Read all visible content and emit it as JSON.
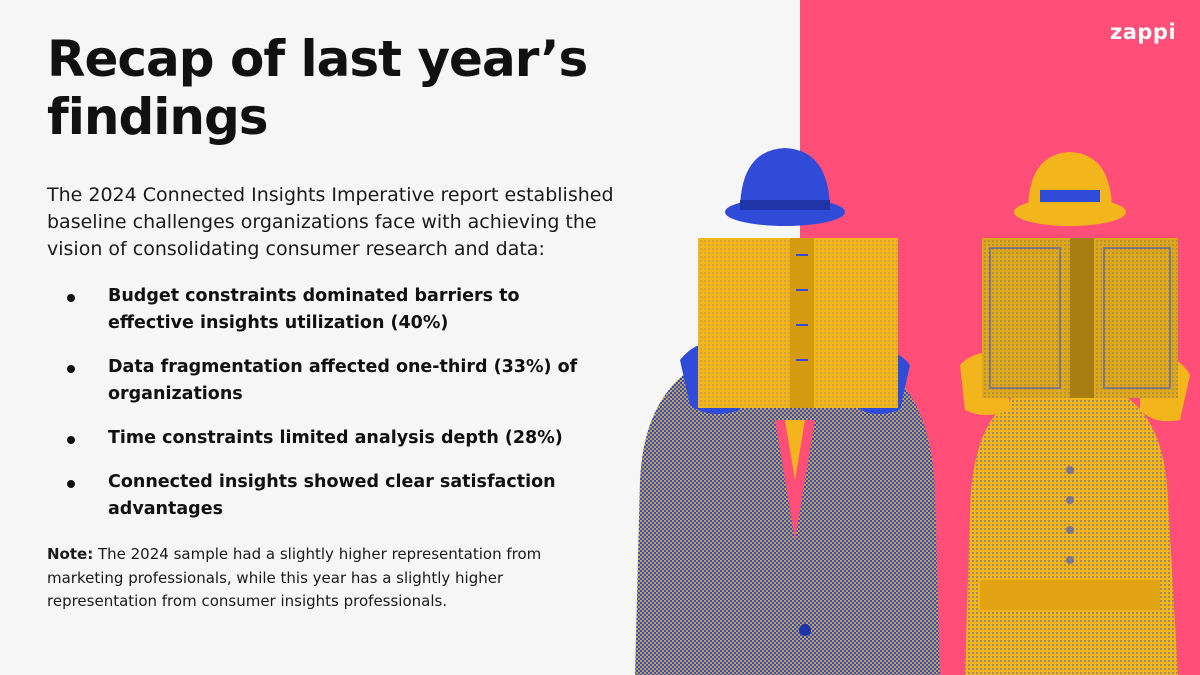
{
  "slide": {
    "title": "Recap of last year’s findings",
    "intro": "The 2024 Connected Insights Imperative report established baseline challenges organizations face with achieving the vision of consolidating consumer research and data:",
    "bullets": [
      "Budget constraints dominated barriers to effective insights utilization (40%)",
      "Data fragmentation affected one-third (33%) of organizations",
      "Time constraints limited analysis depth (28%)",
      "Connected insights showed clear satisfaction advantages"
    ],
    "note_label": "Note:",
    "note_text": " The 2024 sample had a slightly higher representation from marketing professionals, while this year has a slightly higher representation from consumer insights professionals.",
    "logo": "zappi"
  },
  "colors": {
    "accent_pink": "#ff4f79",
    "figure_blue": "#2f4bd8",
    "figure_yellow": "#f2b51c"
  },
  "icons": [
    "bullet-dot-icon",
    "man-reading-book-illustration",
    "woman-reading-book-illustration"
  ]
}
